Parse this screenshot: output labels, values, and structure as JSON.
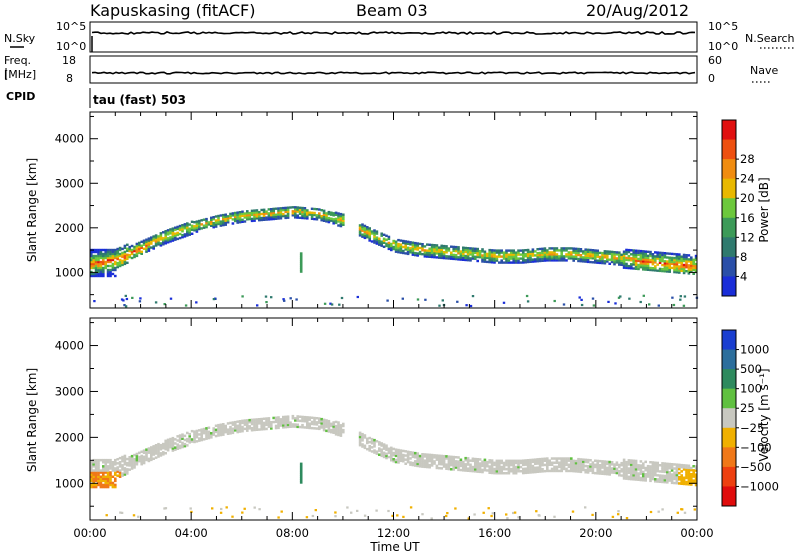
{
  "header": {
    "site": "Kapuskasing (fitACF)",
    "beam": "Beam 03",
    "date": "20/Aug/2012"
  },
  "top_panels": {
    "nsky_label": "N.Sky",
    "nsky_ticks": [
      "10^5",
      "10^0"
    ],
    "nsearch_label": "N.Search",
    "nsearch_ticks": [
      "10^5",
      "10^0"
    ],
    "freq_label_line1": "Freq.",
    "freq_label_line2": "[MHz]",
    "freq_ticks": [
      "18",
      "8"
    ],
    "nave_label": "Nave",
    "nave_ticks": [
      "60",
      "0"
    ],
    "cpid_label": "CPID",
    "cpid_value": "tau (fast) 503"
  },
  "colors": {
    "power_scale": [
      "#1a2ed8",
      "#2a4fa8",
      "#2f7a6e",
      "#3c9a58",
      "#6cc83c",
      "#e8b800",
      "#f08c10",
      "#ee5010",
      "#e01010"
    ],
    "velocity_scale": [
      "#1a3ed0",
      "#2c6e9c",
      "#2e8a5e",
      "#60c040",
      "#c8c8c0",
      "#f0b000",
      "#f07818",
      "#ee4010",
      "#e00c0c"
    ]
  },
  "chart_data": [
    {
      "type": "heatmap",
      "panel": "power",
      "xlabel": "",
      "ylabel": "Slant Range [km]",
      "x_ticks": [
        "00:00",
        "04:00",
        "08:00",
        "12:00",
        "16:00",
        "20:00",
        "00:00"
      ],
      "y_ticks": [
        1000,
        2000,
        3000,
        4000
      ],
      "ylim": [
        200,
        4600
      ],
      "colorbar_label": "Power [dB]",
      "colorbar_ticks": [
        "4",
        "8",
        "12",
        "16",
        "20",
        "24",
        "28"
      ],
      "band_center_km": [
        [
          0,
          1200
        ],
        [
          1,
          1300
        ],
        [
          2,
          1550
        ],
        [
          3,
          1800
        ],
        [
          4,
          2000
        ],
        [
          5,
          2150
        ],
        [
          6,
          2250
        ],
        [
          7,
          2300
        ],
        [
          8,
          2350
        ],
        [
          9,
          2300
        ],
        [
          10,
          2150
        ],
        [
          11,
          1850
        ],
        [
          12,
          1600
        ],
        [
          13,
          1500
        ],
        [
          14,
          1450
        ],
        [
          15,
          1400
        ],
        [
          16,
          1350
        ],
        [
          17,
          1350
        ],
        [
          18,
          1400
        ],
        [
          19,
          1400
        ],
        [
          20,
          1350
        ],
        [
          21,
          1300
        ],
        [
          22,
          1250
        ],
        [
          23,
          1200
        ],
        [
          24,
          1150
        ]
      ]
    },
    {
      "type": "heatmap",
      "panel": "velocity",
      "xlabel": "Time UT",
      "ylabel": "Slant Range [km]",
      "x_ticks": [
        "00:00",
        "04:00",
        "08:00",
        "12:00",
        "16:00",
        "20:00",
        "00:00"
      ],
      "y_ticks": [
        1000,
        2000,
        3000,
        4000
      ],
      "ylim": [
        200,
        4600
      ],
      "colorbar_label": "Velocity [m s⁻¹]",
      "colorbar_ticks": [
        "1000",
        "500",
        "100",
        "25",
        "−25",
        "−100",
        "−500",
        "−1000"
      ]
    }
  ]
}
